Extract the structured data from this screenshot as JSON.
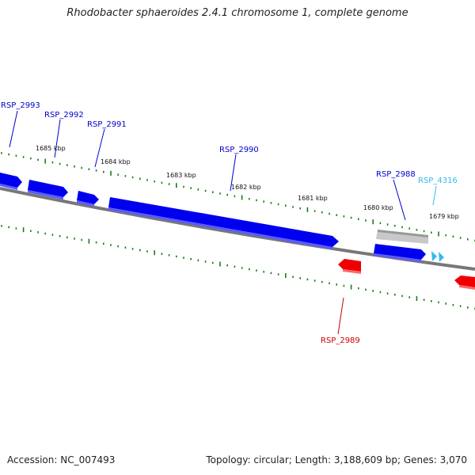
{
  "title": "Rhodobacter sphaeroides 2.4.1 chromosome 1, complete genome",
  "footer": {
    "accession": "Accession: NC_007493",
    "summary": "Topology: circular; Length: 3,188,609 bp; Genes: 3,070"
  },
  "colors": {
    "forward_gene": "#0000ee",
    "reverse_gene": "#ee0000",
    "rna_gene": "#33bbee",
    "pseudo_gene": "#aaaaaa",
    "tick": "#1a7a1a",
    "backbone": "#777777"
  },
  "kbp_labels": [
    "1685 kbp",
    "1684 kbp",
    "1683 kbp",
    "1682 kbp",
    "1681 kbp",
    "1680 kbp",
    "1679 kbp"
  ],
  "genes": [
    {
      "name": "RSP_2993",
      "strand": "forward",
      "labeled": true
    },
    {
      "name": "RSP_2992",
      "strand": "forward",
      "labeled": true
    },
    {
      "name": "RSP_2991",
      "strand": "forward",
      "labeled": true
    },
    {
      "name": "RSP_2990",
      "strand": "forward",
      "labeled": true
    },
    {
      "name": "RSP_2988",
      "strand": "forward",
      "labeled": true
    },
    {
      "name": "RSP_4316",
      "strand": "forward",
      "labeled": true
    },
    {
      "name": "RSP_2989",
      "strand": "reverse",
      "labeled": true
    }
  ]
}
